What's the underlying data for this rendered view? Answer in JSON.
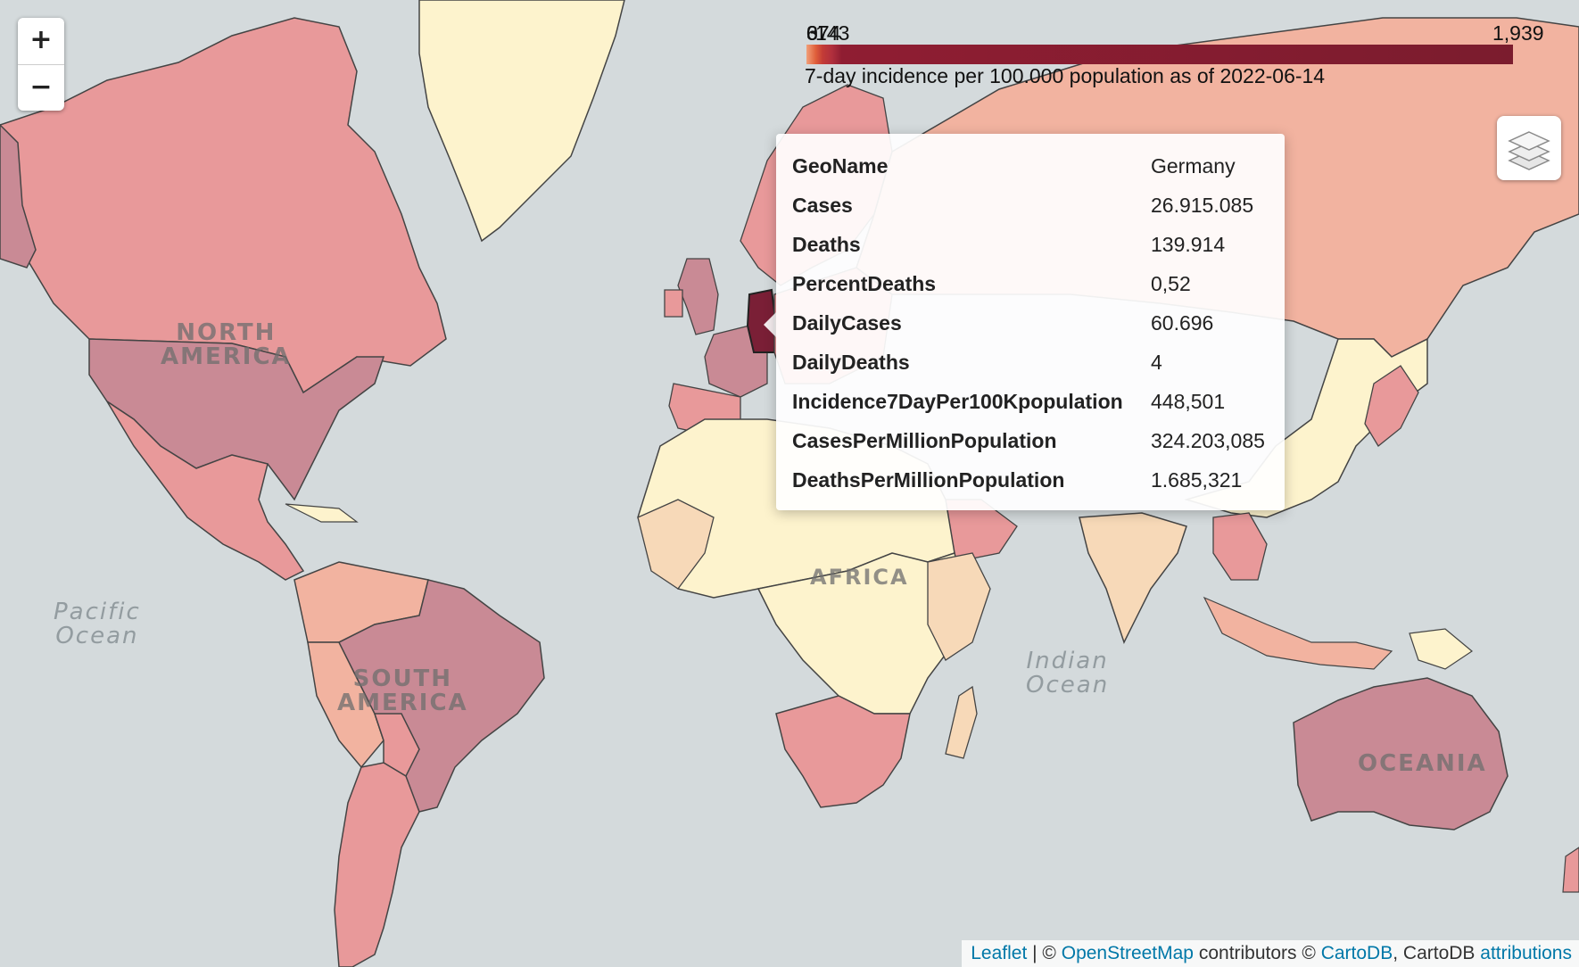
{
  "map": {
    "continent_labels": {
      "north_america": "NORTH\nAMERICA",
      "south_america": "SOUTH\nAMERICA",
      "africa": "AFRICA",
      "oceania": "OCEANIA"
    },
    "ocean_labels": {
      "pacific": "Pacific\nOcean",
      "indian": "Indian\nOcean"
    }
  },
  "zoom": {
    "in_label": "+",
    "out_label": "−"
  },
  "layers_control": {
    "icon": "layers-icon"
  },
  "legend": {
    "ticks": [
      "0",
      "67",
      "143",
      "374",
      "1,939"
    ],
    "caption": "7-day incidence per 100.000 population as of 2022-06-14",
    "colors": [
      "#f1a079",
      "#e0603b",
      "#c23b36",
      "#8f1d32",
      "#7b1c2e"
    ]
  },
  "popup": {
    "rows": [
      {
        "key": "GeoName",
        "value": "Germany"
      },
      {
        "key": "Cases",
        "value": "26.915.085"
      },
      {
        "key": "Deaths",
        "value": "139.914"
      },
      {
        "key": "PercentDeaths",
        "value": "0,52"
      },
      {
        "key": "DailyCases",
        "value": "60.696"
      },
      {
        "key": "DailyDeaths",
        "value": "4"
      },
      {
        "key": "Incidence7DayPer100Kpopulation",
        "value": "448,501"
      },
      {
        "key": "CasesPerMillionPopulation",
        "value": "324.203,085"
      },
      {
        "key": "DeathsPerMillionPopulation",
        "value": "1.685,321"
      }
    ]
  },
  "attribution": {
    "leaflet": "Leaflet",
    "sep": " | © ",
    "osm": "OpenStreetMap",
    "contributors": " contributors © ",
    "cartodb": "CartoDB",
    "cartodb_text": ", CartoDB ",
    "attributions": "attributions"
  },
  "colors": {
    "ocean": "#d4dadc",
    "low": "#fdf3cd",
    "pale": "#f7d9b8",
    "salmon": "#f2b3a0",
    "pink": "#e8999a",
    "mauve": "#c98a95",
    "dark": "#8b2a3f",
    "selected": "#7a1f36"
  }
}
